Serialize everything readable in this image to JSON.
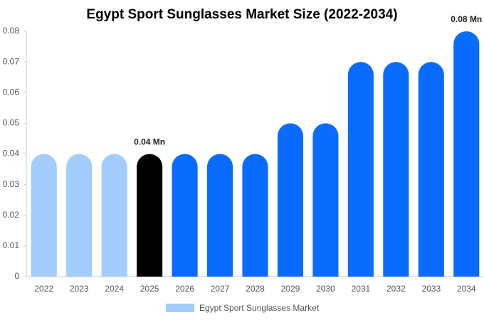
{
  "chart_data": {
    "type": "bar",
    "title": "Egypt Sport Sunglasses Market Size (2022-2034)",
    "categories": [
      "2022",
      "2023",
      "2024",
      "2025",
      "2026",
      "2027",
      "2028",
      "2029",
      "2030",
      "2031",
      "2032",
      "2033",
      "2034"
    ],
    "series": [
      {
        "name": "Egypt Sport Sunglasses Market",
        "color": "#a2cdfd",
        "values": [
          0.04,
          0.04,
          0.04,
          0.04,
          0.04,
          0.04,
          0.04,
          0.05,
          0.05,
          0.07,
          0.07,
          0.07,
          0.08
        ],
        "value_labels": [
          null,
          null,
          null,
          "0.04 Mn",
          null,
          null,
          null,
          null,
          null,
          null,
          null,
          null,
          "0.08 Mn"
        ],
        "colors": [
          "#a2cdfd",
          "#a2cdfd",
          "#a2cdfd",
          "#000000",
          "#0a6cff",
          "#0a6cff",
          "#0a6cff",
          "#0a6cff",
          "#0a6cff",
          "#0a6cff",
          "#0a6cff",
          "#0a6cff",
          "#0a6cff"
        ]
      }
    ],
    "ylim": [
      0,
      0.08
    ],
    "yticks": [
      0,
      0.01,
      0.02,
      0.03,
      0.04,
      0.05,
      0.06,
      0.07,
      0.08
    ],
    "grid": false
  }
}
